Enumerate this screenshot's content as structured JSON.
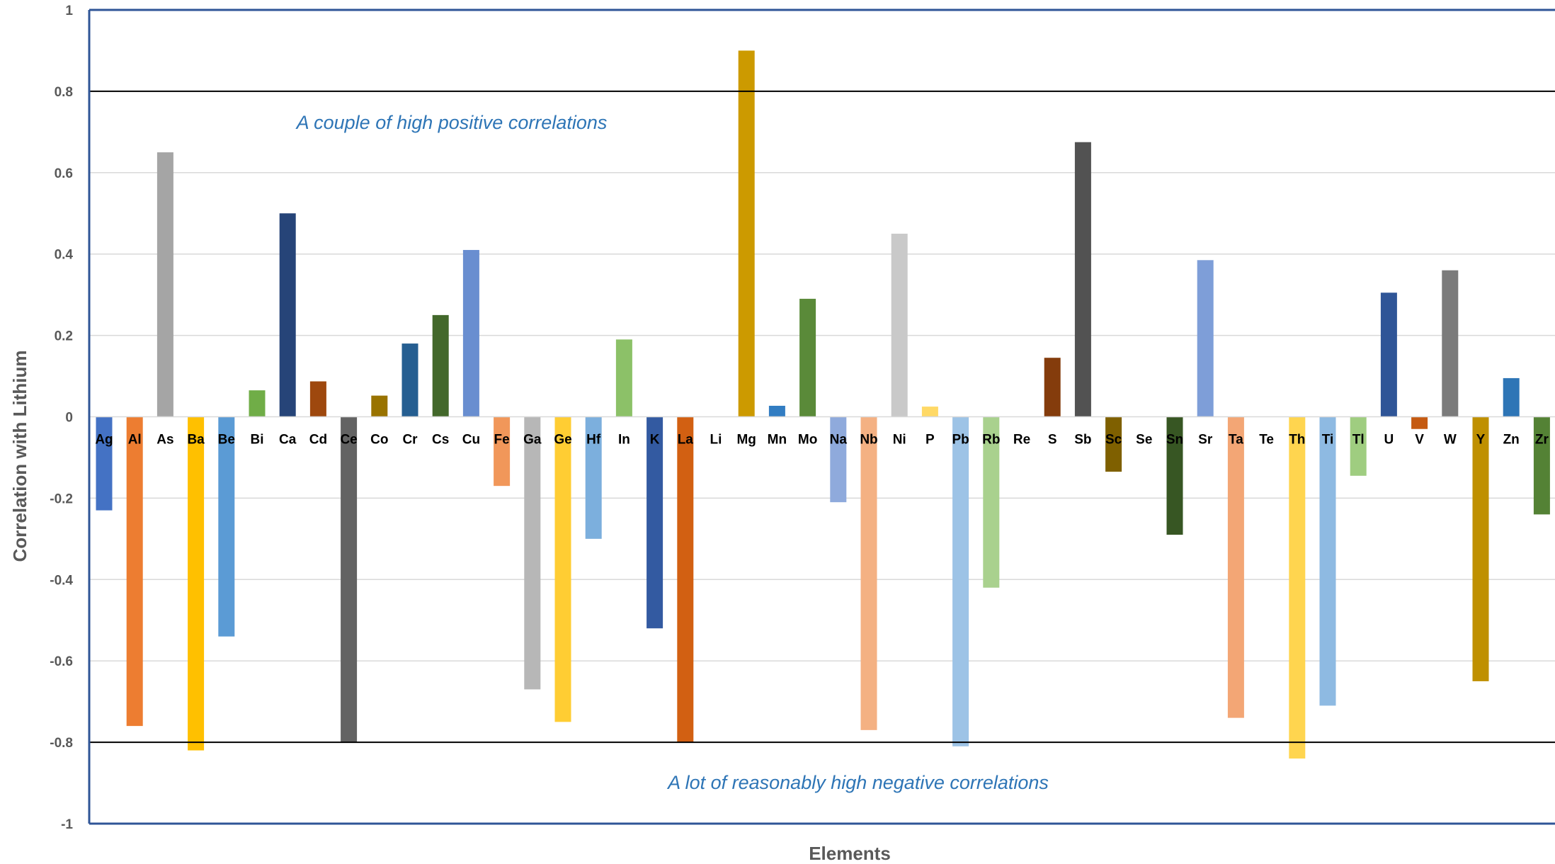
{
  "chart_data": {
    "type": "bar",
    "title": "",
    "xlabel": "Elements",
    "ylabel": "Correlation with Lithium",
    "ylim": [
      -1,
      1
    ],
    "yticks": [
      1,
      0.8,
      0.6,
      0.4,
      0.2,
      0,
      -0.2,
      -0.4,
      -0.6,
      -0.8,
      -1
    ],
    "ytick_labels": [
      "1",
      "0.8",
      "0.6",
      "0.4",
      "0.2",
      "0",
      "-0.2",
      "-0.4",
      "-0.6",
      "-0.8",
      "-1"
    ],
    "grid": true,
    "reference_lines": [
      0.8,
      -0.8
    ],
    "legend": "none",
    "categories": [
      "Ag",
      "Al",
      "As",
      "Ba",
      "Be",
      "Bi",
      "Ca",
      "Cd",
      "Ce",
      "Co",
      "Cr",
      "Cs",
      "Cu",
      "Fe",
      "Ga",
      "Ge",
      "Hf",
      "In",
      "K",
      "La",
      "Li",
      "Mg",
      "Mn",
      "Mo",
      "Na",
      "Nb",
      "Ni",
      "P",
      "Pb",
      "Rb",
      "Re",
      "S",
      "Sb",
      "Sc",
      "Se",
      "Sn",
      "Sr",
      "Ta",
      "Te",
      "Th",
      "Ti",
      "Tl",
      "U",
      "V",
      "W",
      "Y",
      "Zn",
      "Zr"
    ],
    "values": [
      -0.23,
      -0.76,
      0.65,
      -0.82,
      -0.54,
      0.065,
      0.5,
      0.087,
      -0.8,
      0.052,
      0.18,
      0.25,
      0.41,
      -0.17,
      -0.67,
      -0.75,
      -0.3,
      0.19,
      -0.52,
      -0.8,
      0,
      0.9,
      0.027,
      0.29,
      -0.21,
      -0.77,
      0.45,
      0.025,
      -0.81,
      -0.42,
      0,
      0.145,
      0.675,
      -0.135,
      0,
      -0.29,
      0.385,
      -0.74,
      0,
      -0.84,
      -0.71,
      -0.145,
      0.305,
      -0.03,
      0.36,
      -0.65,
      0.095,
      -0.24
    ],
    "colors": [
      "#4472c4",
      "#ed7d31",
      "#a5a5a5",
      "#ffc000",
      "#5b9bd5",
      "#70ad47",
      "#264478",
      "#9e480e",
      "#636363",
      "#997300",
      "#255e91",
      "#43682b",
      "#698ed0",
      "#f1975a",
      "#b7b7b7",
      "#ffcd33",
      "#7cafdd",
      "#8cc168",
      "#335aa1",
      "#d26012",
      "#848484",
      "#cc9a00",
      "#327dc2",
      "#5a8a39",
      "#8faadc",
      "#f4b183",
      "#c9c9c9",
      "#ffd966",
      "#9dc3e6",
      "#a9d18e",
      "#203864",
      "#843c0c",
      "#525252",
      "#7f6000",
      "#1f4e79",
      "#375623",
      "#7e9ed8",
      "#f3a675",
      "#bcbcbc",
      "#ffd54f",
      "#8ebae2",
      "#9fcd80",
      "#2f5597",
      "#c55a11",
      "#7b7b7b",
      "#bf9000",
      "#2e75b6",
      "#548235"
    ],
    "annotations": [
      "A couple of high positive correlations",
      "A lot of reasonably high negative correlations"
    ]
  }
}
